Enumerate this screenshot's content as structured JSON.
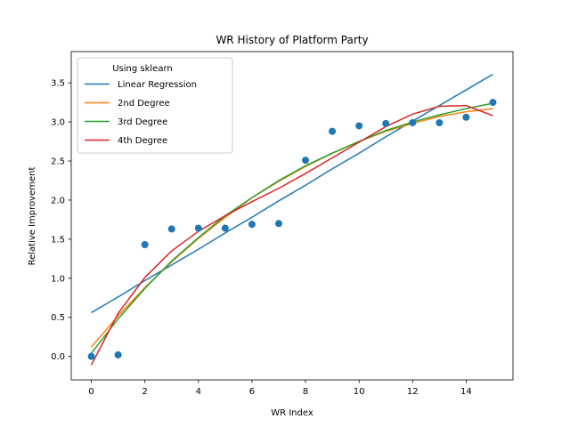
{
  "chart_data": {
    "type": "scatter",
    "title": "WR History of Platform Party",
    "xlabel": "WR Index",
    "ylabel": "Relative Improvement",
    "xlim": [
      -0.75,
      15.75
    ],
    "ylim": [
      -0.3,
      3.9
    ],
    "xticks": [
      0,
      2,
      4,
      6,
      8,
      10,
      12,
      14
    ],
    "xtick_labels": [
      "0",
      "2",
      "4",
      "6",
      "8",
      "10",
      "12",
      "14"
    ],
    "yticks": [
      0.0,
      0.5,
      1.0,
      1.5,
      2.0,
      2.5,
      3.0,
      3.5
    ],
    "ytick_labels": [
      "0.0",
      "0.5",
      "1.0",
      "1.5",
      "2.0",
      "2.5",
      "3.0",
      "3.5"
    ],
    "grid": false,
    "legend": {
      "title": "Using sklearn",
      "placement": "top-left"
    },
    "points": {
      "color": "#1f77b4",
      "x": [
        0,
        1,
        2,
        3,
        4,
        5,
        6,
        7,
        8,
        9,
        10,
        11,
        12,
        13,
        14,
        15
      ],
      "y": [
        0.0,
        0.02,
        1.43,
        1.63,
        1.64,
        1.64,
        1.69,
        1.7,
        2.51,
        2.88,
        2.95,
        2.98,
        2.99,
        2.99,
        3.06,
        3.25
      ]
    },
    "x": [
      0,
      1,
      2,
      3,
      4,
      5,
      6,
      7,
      8,
      9,
      10,
      11,
      12,
      13,
      14,
      15
    ],
    "series": [
      {
        "name": "Linear Regression",
        "color": "#1f77b4",
        "values": [
          0.56,
          0.76,
          0.97,
          1.17,
          1.37,
          1.58,
          1.78,
          1.99,
          2.19,
          2.4,
          2.6,
          2.81,
          3.01,
          3.21,
          3.41,
          3.61
        ]
      },
      {
        "name": "2nd Degree",
        "color": "#ff7f0e",
        "values": [
          0.12,
          0.52,
          0.88,
          1.21,
          1.51,
          1.78,
          2.03,
          2.24,
          2.43,
          2.6,
          2.75,
          2.88,
          2.98,
          3.07,
          3.13,
          3.17
        ]
      },
      {
        "name": "3rd Degree",
        "color": "#2ca02c",
        "values": [
          0.04,
          0.48,
          0.87,
          1.22,
          1.52,
          1.8,
          2.03,
          2.25,
          2.44,
          2.6,
          2.75,
          2.89,
          3.0,
          3.09,
          3.17,
          3.24
        ]
      },
      {
        "name": "4th Degree",
        "color": "#d62728",
        "values": [
          -0.11,
          0.55,
          1.01,
          1.35,
          1.6,
          1.8,
          1.98,
          2.15,
          2.34,
          2.54,
          2.74,
          2.94,
          3.1,
          3.2,
          3.21,
          3.08
        ]
      }
    ]
  }
}
